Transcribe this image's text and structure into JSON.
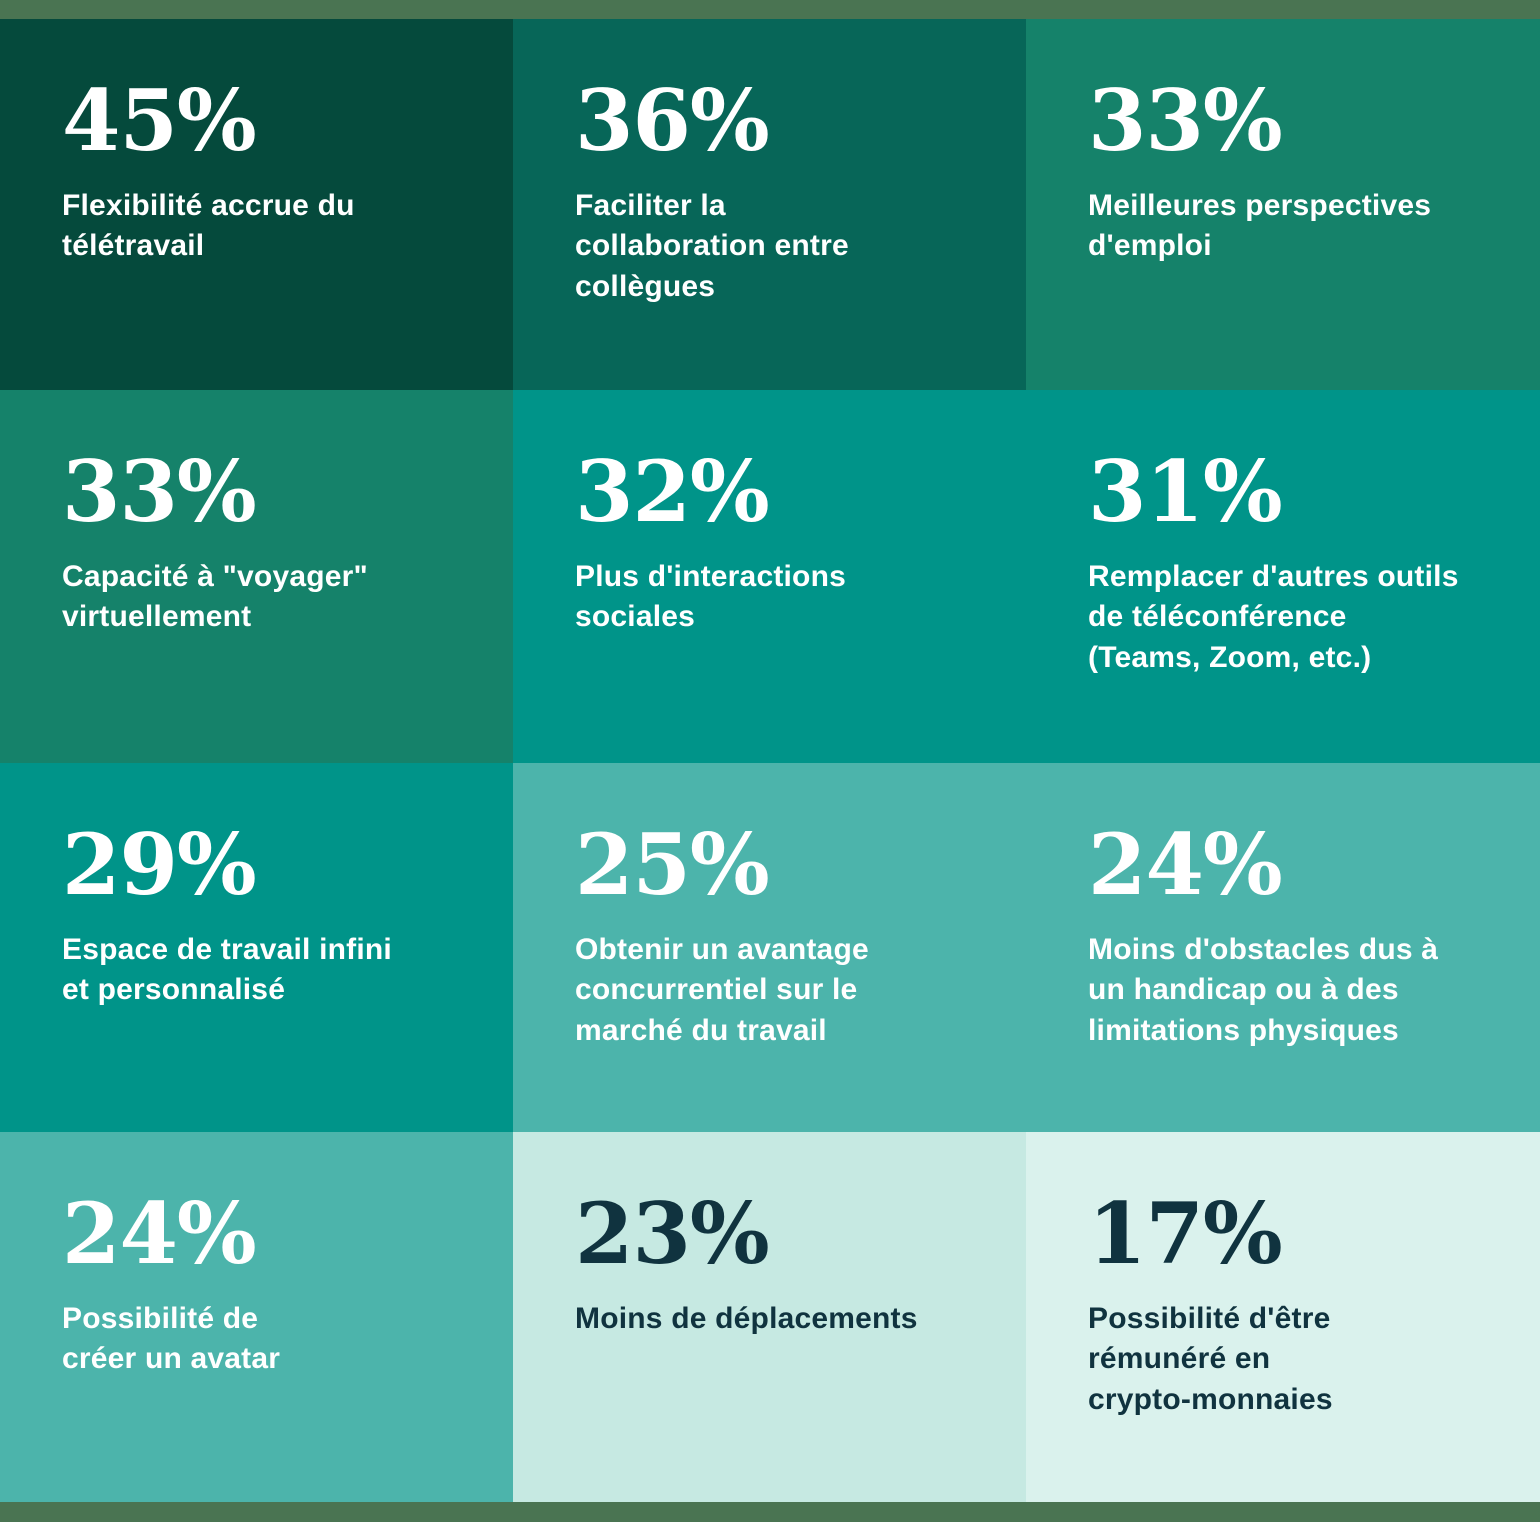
{
  "frame": {
    "strip_color": "#4A7452"
  },
  "cells": [
    {
      "value": "45%",
      "label": "Flexibilité accrue du\ntélétravail",
      "bg": "#054A3C",
      "fg": "#FFFFFF"
    },
    {
      "value": "36%",
      "label": "Faciliter la\ncollaboration entre\ncollègues",
      "bg": "#076658",
      "fg": "#FFFFFF"
    },
    {
      "value": "33%",
      "label": "Meilleures perspectives\nd'emploi",
      "bg": "#15826A",
      "fg": "#FFFFFF"
    },
    {
      "value": "33%",
      "label": "Capacité à \"voyager\"\nvirtuellement",
      "bg": "#15826A",
      "fg": "#FFFFFF"
    },
    {
      "value": "32%",
      "label": "Plus d'interactions\nsociales",
      "bg": "#009489",
      "fg": "#FFFFFF"
    },
    {
      "value": "31%",
      "label": "Remplacer d'autres outils\nde téléconférence\n(Teams, Zoom, etc.)",
      "bg": "#009489",
      "fg": "#FFFFFF"
    },
    {
      "value": "29%",
      "label": "Espace de travail infini\net personnalisé",
      "bg": "#009489",
      "fg": "#FFFFFF"
    },
    {
      "value": "25%",
      "label": "Obtenir un avantage\nconcurrentiel sur le\nmarché du travail",
      "bg": "#4CB4AB",
      "fg": "#FFFFFF"
    },
    {
      "value": "24%",
      "label": "Moins d'obstacles dus à\nun handicap ou à des\nlimitations physiques",
      "bg": "#4CB4AB",
      "fg": "#FFFFFF"
    },
    {
      "value": "24%",
      "label": "Possibilité de\ncréer un avatar",
      "bg": "#4CB4AB",
      "fg": "#FFFFFF"
    },
    {
      "value": "23%",
      "label": "Moins de déplacements",
      "bg": "#C6E9E2",
      "fg": "#10333F"
    },
    {
      "value": "17%",
      "label": "Possibilité d'être\nrémunéré en\ncrypto-monnaies",
      "bg": "#DAF2ED",
      "fg": "#10333F"
    }
  ],
  "chart_data": {
    "type": "table",
    "title": "",
    "layout": {
      "rows": 4,
      "columns": 3,
      "note": "color-shaded stat grid, dark to light by rank"
    },
    "categories": [
      "Flexibilité accrue du télétravail",
      "Faciliter la collaboration entre collègues",
      "Meilleures perspectives d'emploi",
      "Capacité à \"voyager\" virtuellement",
      "Plus d'interactions sociales",
      "Remplacer d'autres outils de téléconférence (Teams, Zoom, etc.)",
      "Espace de travail infini et personnalisé",
      "Obtenir un avantage concurrentiel sur le marché du travail",
      "Moins d'obstacles dus à un handicap ou à des limitations physiques",
      "Possibilité de créer un avatar",
      "Moins de déplacements",
      "Possibilité d'être rémunéré en crypto-monnaies"
    ],
    "values": [
      45,
      36,
      33,
      33,
      32,
      31,
      29,
      25,
      24,
      24,
      23,
      17
    ],
    "unit": "%"
  }
}
